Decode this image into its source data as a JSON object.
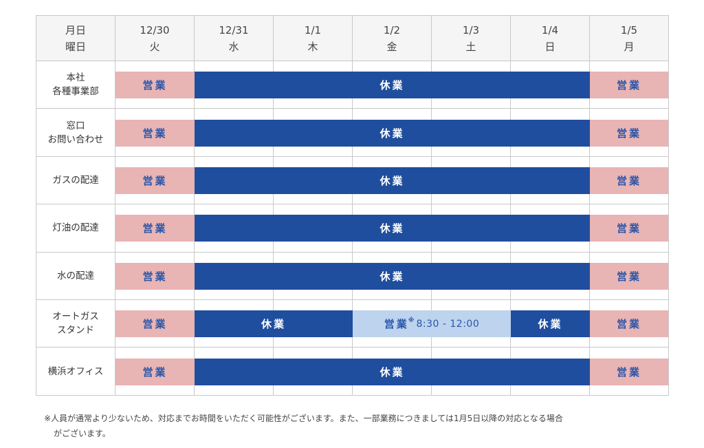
{
  "header": {
    "corner": [
      "月日",
      "曜日"
    ],
    "days": [
      {
        "date": "12/30",
        "weekday": "火"
      },
      {
        "date": "12/31",
        "weekday": "水"
      },
      {
        "date": "1/1",
        "weekday": "木"
      },
      {
        "date": "1/2",
        "weekday": "金"
      },
      {
        "date": "1/3",
        "weekday": "土"
      },
      {
        "date": "1/4",
        "weekday": "日"
      },
      {
        "date": "1/5",
        "weekday": "月"
      }
    ]
  },
  "rows": [
    {
      "label": [
        "本社",
        "各種事業部"
      ],
      "bars": [
        {
          "status": "open",
          "text": "営業",
          "start": 1,
          "span": 1
        },
        {
          "status": "closed",
          "text": "休業",
          "start": 2,
          "span": 5
        },
        {
          "status": "open",
          "text": "営業",
          "start": 7,
          "span": 1
        }
      ]
    },
    {
      "label": [
        "窓口",
        "お問い合わせ"
      ],
      "bars": [
        {
          "status": "open",
          "text": "営業",
          "start": 1,
          "span": 1
        },
        {
          "status": "closed",
          "text": "休業",
          "start": 2,
          "span": 5
        },
        {
          "status": "open",
          "text": "営業",
          "start": 7,
          "span": 1
        }
      ]
    },
    {
      "label": [
        "ガスの配達"
      ],
      "bars": [
        {
          "status": "open",
          "text": "営業",
          "start": 1,
          "span": 1
        },
        {
          "status": "closed",
          "text": "休業",
          "start": 2,
          "span": 5
        },
        {
          "status": "open",
          "text": "営業",
          "start": 7,
          "span": 1
        }
      ]
    },
    {
      "label": [
        "灯油の配達"
      ],
      "bars": [
        {
          "status": "open",
          "text": "営業",
          "start": 1,
          "span": 1
        },
        {
          "status": "closed",
          "text": "休業",
          "start": 2,
          "span": 5
        },
        {
          "status": "open",
          "text": "営業",
          "start": 7,
          "span": 1
        }
      ]
    },
    {
      "label": [
        "水の配達"
      ],
      "bars": [
        {
          "status": "open",
          "text": "営業",
          "start": 1,
          "span": 1
        },
        {
          "status": "closed",
          "text": "休業",
          "start": 2,
          "span": 5
        },
        {
          "status": "open",
          "text": "営業",
          "start": 7,
          "span": 1
        }
      ]
    },
    {
      "label": [
        "オートガス",
        "スタンド"
      ],
      "bars": [
        {
          "status": "open",
          "text": "営業",
          "start": 1,
          "span": 1
        },
        {
          "status": "closed",
          "text": "休業",
          "start": 2,
          "span": 2
        },
        {
          "status": "partial",
          "text": "営業",
          "note": "※",
          "time": "8:30 - 12:00",
          "start": 4,
          "span": 2
        },
        {
          "status": "closed",
          "text": "休業",
          "start": 6,
          "span": 1
        },
        {
          "status": "open",
          "text": "営業",
          "start": 7,
          "span": 1
        }
      ]
    },
    {
      "label": [
        "横浜オフィス"
      ],
      "bars": [
        {
          "status": "open",
          "text": "営業",
          "start": 1,
          "span": 1
        },
        {
          "status": "closed",
          "text": "休業",
          "start": 2,
          "span": 5
        },
        {
          "status": "open",
          "text": "営業",
          "start": 7,
          "span": 1
        }
      ]
    }
  ],
  "footnote": [
    "※人員が通常より少ないため、対応までお時間をいただく可能性がございます。また、一部業務につきましては1月5日以降の対応となる場合",
    "がございます。"
  ],
  "colors": {
    "open": "#e8b4b4",
    "closed": "#1f4e9e",
    "partial": "#bdd3ee",
    "open_text": "#2a55a8",
    "header_bg": "#f5f5f5",
    "border": "#c8c8c8"
  }
}
